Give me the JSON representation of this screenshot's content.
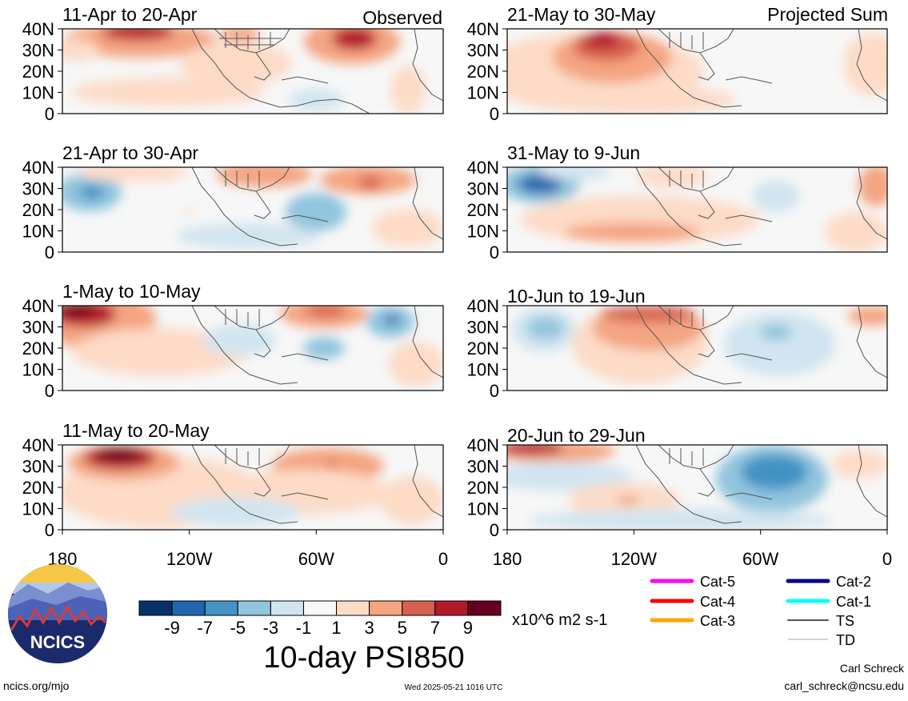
{
  "header": {
    "observed_label": "Observed",
    "projected_label": "Projected Sum"
  },
  "panels": {
    "left": [
      {
        "title": "11-Apr to 20-Apr"
      },
      {
        "title": "21-Apr to 30-Apr"
      },
      {
        "title": "1-May to 10-May"
      },
      {
        "title": "11-May to 20-May"
      }
    ],
    "right": [
      {
        "title": "21-May to 30-May"
      },
      {
        "title": "31-May to 9-Jun"
      },
      {
        "title": "10-Jun to 19-Jun"
      },
      {
        "title": "20-Jun to 29-Jun"
      }
    ]
  },
  "axes": {
    "lat_ticks": [
      "40N",
      "30N",
      "20N",
      "10N",
      "0"
    ],
    "lon_ticks": [
      "180",
      "120W",
      "60W",
      "0"
    ]
  },
  "colorbar": {
    "labels": [
      "-9",
      "-7",
      "-5",
      "-3",
      "-1",
      "1",
      "3",
      "5",
      "7",
      "9"
    ],
    "colors": [
      "#08306b",
      "#2166ac",
      "#4393c3",
      "#92c5de",
      "#d1e5f0",
      "#f7f7f7",
      "#fddbc7",
      "#f4a582",
      "#d6604d",
      "#b2182b",
      "#67001f"
    ],
    "units": "x10^6 m2 s-1",
    "title": "10-day PSI850"
  },
  "legend": {
    "items": [
      {
        "label": "Cat-5",
        "color": "#ff00ff"
      },
      {
        "label": "Cat-4",
        "color": "#ff0000"
      },
      {
        "label": "Cat-3",
        "color": "#ffa500"
      },
      {
        "label": "Cat-2",
        "color": "#00008b"
      },
      {
        "label": "Cat-1",
        "color": "#00ffff"
      },
      {
        "label": "TS",
        "color": "#555555"
      },
      {
        "label": "TD",
        "color": "#aaaaaa"
      }
    ]
  },
  "footer": {
    "logo_text": "NCICS",
    "url": "ncics.org/mjo",
    "timestamp": "Wed 2025-05-21 1016 UTC",
    "author": "Carl Schreck",
    "email": "carl_schreck@ncsu.edu"
  },
  "chart_data": {
    "type": "heatmap",
    "variable": "10-day PSI850",
    "units": "x10^6 m2 s-1",
    "x_range": [
      "180",
      "0"
    ],
    "y_range": [
      "0",
      "40N"
    ],
    "levels": [
      -9,
      -7,
      -5,
      -3,
      -1,
      1,
      3,
      5,
      7,
      9
    ],
    "panels": [
      {
        "period": "11-Apr to 20-Apr",
        "type": "observed"
      },
      {
        "period": "21-Apr to 30-Apr",
        "type": "observed"
      },
      {
        "period": "1-May to 10-May",
        "type": "observed"
      },
      {
        "period": "11-May to 20-May",
        "type": "observed"
      },
      {
        "period": "21-May to 30-May",
        "type": "projected"
      },
      {
        "period": "31-May to 9-Jun",
        "type": "projected"
      },
      {
        "period": "10-Jun to 19-Jun",
        "type": "projected"
      },
      {
        "period": "20-Jun to 29-Jun",
        "type": "projected"
      }
    ]
  }
}
